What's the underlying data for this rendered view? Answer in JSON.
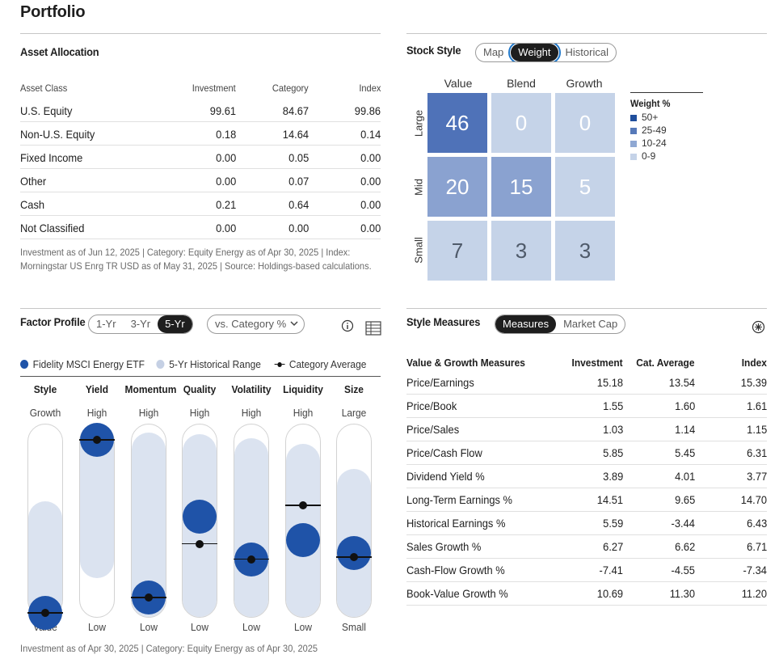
{
  "page_title": "Portfolio",
  "asset_allocation": {
    "title": "Asset Allocation",
    "columns": [
      "Asset Class",
      "Investment",
      "Category",
      "Index"
    ],
    "rows": [
      [
        "U.S. Equity",
        "99.61",
        "84.67",
        "99.86"
      ],
      [
        "Non-U.S. Equity",
        "0.18",
        "14.64",
        "0.14"
      ],
      [
        "Fixed Income",
        "0.00",
        "0.05",
        "0.00"
      ],
      [
        "Other",
        "0.00",
        "0.07",
        "0.00"
      ],
      [
        "Cash",
        "0.21",
        "0.64",
        "0.00"
      ],
      [
        "Not Classified",
        "0.00",
        "0.00",
        "0.00"
      ]
    ],
    "footnote_line1": "Investment as of Jun 12, 2025 | Category: Equity Energy as of Apr 30, 2025 | Index:",
    "footnote_line2": "Morningstar US Enrg TR USD as of May 31, 2025 | Source: Holdings-based calculations."
  },
  "stock_style": {
    "title": "Stock Style",
    "tabs": [
      "Map",
      "Weight",
      "Historical"
    ],
    "active_tab": "Weight",
    "col_labels": [
      "Value",
      "Blend",
      "Growth"
    ],
    "row_labels": [
      "Large",
      "Mid",
      "Small"
    ],
    "cells": [
      [
        "46",
        "0",
        "0"
      ],
      [
        "20",
        "15",
        "5"
      ],
      [
        "7",
        "3",
        "3"
      ]
    ],
    "legend_title": "Weight %",
    "legend": [
      {
        "label": "50+",
        "color": "#1f4e9c"
      },
      {
        "label": "25-49",
        "color": "#5679b9"
      },
      {
        "label": "10-24",
        "color": "#8fa8d3"
      },
      {
        "label": "0-9",
        "color": "#c5d3e8"
      }
    ]
  },
  "factor_profile": {
    "title": "Factor Profile",
    "period_tabs": [
      "1-Yr",
      "3-Yr",
      "5-Yr"
    ],
    "active_period": "5-Yr",
    "compare_dropdown": "vs. Category %",
    "legend_fund": "Fidelity MSCI Energy ETF",
    "legend_range": "5-Yr Historical Range",
    "legend_category": "Category Average",
    "factors": [
      {
        "name": "Style",
        "top": "Growth",
        "bottom": "Value",
        "range_low": 0.0,
        "range_high": 0.6,
        "fund": 0.02,
        "category": 0.02
      },
      {
        "name": "Yield",
        "top": "High",
        "bottom": "Low",
        "range_low": 0.2,
        "range_high": 1.0,
        "fund": 0.92,
        "category": 0.92
      },
      {
        "name": "Momentum",
        "top": "High",
        "bottom": "Low",
        "range_low": 0.0,
        "range_high": 0.96,
        "fund": 0.1,
        "category": 0.1
      },
      {
        "name": "Quality",
        "top": "High",
        "bottom": "Low",
        "range_low": 0.0,
        "range_high": 0.95,
        "fund": 0.52,
        "category": 0.38
      },
      {
        "name": "Volatility",
        "top": "High",
        "bottom": "Low",
        "range_low": 0.0,
        "range_high": 0.93,
        "fund": 0.3,
        "category": 0.3
      },
      {
        "name": "Liquidity",
        "top": "High",
        "bottom": "Low",
        "range_low": 0.0,
        "range_high": 0.9,
        "fund": 0.4,
        "category": 0.58
      },
      {
        "name": "Size",
        "top": "Large",
        "bottom": "Small",
        "range_low": 0.0,
        "range_high": 0.77,
        "fund": 0.33,
        "category": 0.31
      }
    ],
    "footnote": "Investment as of Apr 30, 2025 | Category: Equity Energy as of Apr 30, 2025"
  },
  "style_measures": {
    "title": "Style Measures",
    "tabs": [
      "Measures",
      "Market Cap"
    ],
    "active_tab": "Measures",
    "columns": [
      "Value & Growth Measures",
      "Investment",
      "Cat. Average",
      "Index"
    ],
    "rows": [
      [
        "Price/Earnings",
        "15.18",
        "13.54",
        "15.39"
      ],
      [
        "Price/Book",
        "1.55",
        "1.60",
        "1.61"
      ],
      [
        "Price/Sales",
        "1.03",
        "1.14",
        "1.15"
      ],
      [
        "Price/Cash Flow",
        "5.85",
        "5.45",
        "6.31"
      ],
      [
        "Dividend Yield %",
        "3.89",
        "4.01",
        "3.77"
      ],
      [
        "Long-Term Earnings %",
        "14.51",
        "9.65",
        "14.70"
      ],
      [
        "Historical Earnings %",
        "5.59",
        "-3.44",
        "6.43"
      ],
      [
        "Sales Growth %",
        "6.27",
        "6.62",
        "6.71"
      ],
      [
        "Cash-Flow Growth %",
        "-7.41",
        "-4.55",
        "-7.34"
      ],
      [
        "Book-Value Growth %",
        "10.69",
        "11.30",
        "11.20"
      ]
    ]
  },
  "colors": {
    "fund_dot": "#1f53a8",
    "range_fill": "#dbe3f0",
    "cell_dark": "#4f72b8",
    "cell_mid": "#8aa2d0",
    "cell_light": "#c5d3e8"
  }
}
